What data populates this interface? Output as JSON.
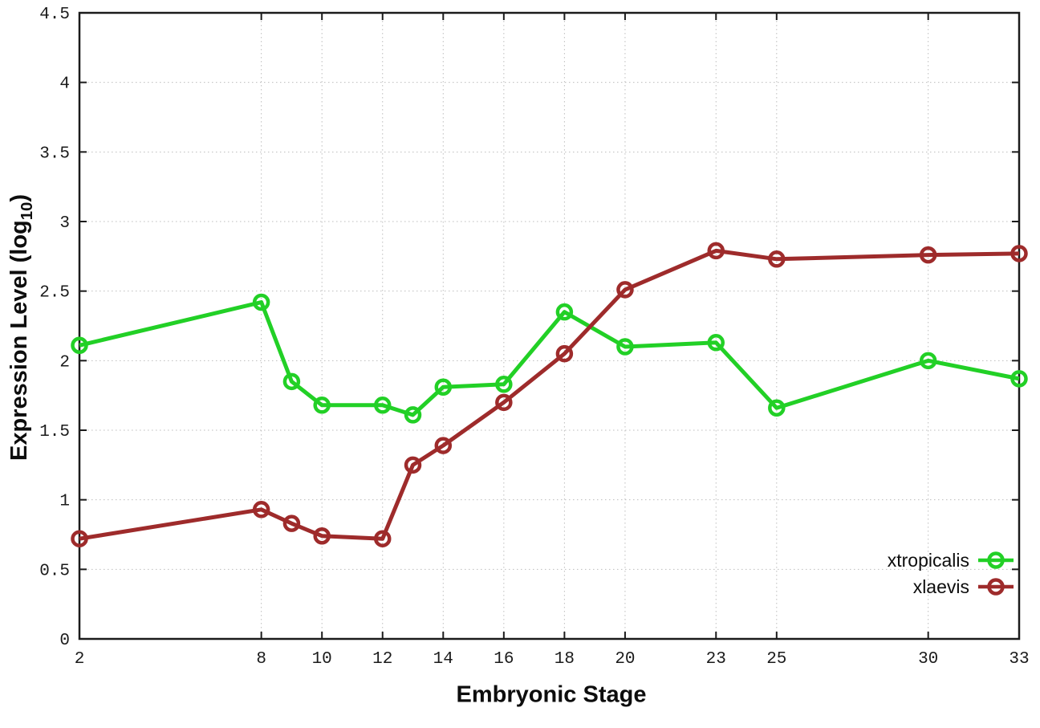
{
  "figure": {
    "background": "#ffffff",
    "axis_color": "#1b1b1b",
    "grid_color": "#bdbdbd",
    "tick_label_color": "#1b1b1b"
  },
  "chart_data": {
    "type": "line",
    "title": "",
    "xlabel": "Embryonic Stage",
    "ylabel": {
      "prefix": "Expression Level (log",
      "subscript": "10",
      "suffix": ")"
    },
    "xlim": [
      2,
      33
    ],
    "ylim": [
      0,
      4.5
    ],
    "grid": true,
    "legend_position": "bottom-right-inside",
    "xticks": [
      2,
      8,
      10,
      12,
      14,
      16,
      18,
      20,
      23,
      25,
      30,
      33
    ],
    "xtick_labels": [
      "2",
      "8",
      "10",
      "12",
      "14",
      "16",
      "18",
      "20",
      "23",
      "25",
      "30",
      "33"
    ],
    "yticks": [
      0,
      0.5,
      1,
      1.5,
      2,
      2.5,
      3,
      3.5,
      4,
      4.5
    ],
    "ytick_labels": [
      "0",
      "0.5",
      "1",
      "1.5",
      "2",
      "2.5",
      "3",
      "3.5",
      "4",
      "4.5"
    ],
    "x": [
      2,
      8,
      9,
      10,
      12,
      13,
      14,
      16,
      18,
      20,
      23,
      25,
      30,
      33
    ],
    "series": [
      {
        "name": "xtropicalis",
        "color": "#22d026",
        "values": [
          2.11,
          2.42,
          1.85,
          1.68,
          1.68,
          1.61,
          1.81,
          1.83,
          2.35,
          2.1,
          2.13,
          1.66,
          2.0,
          1.87
        ]
      },
      {
        "name": "xlaevis",
        "color": "#9e2b2b",
        "values": [
          0.72,
          0.93,
          0.83,
          0.74,
          0.72,
          1.25,
          1.39,
          1.7,
          2.05,
          2.51,
          2.79,
          2.73,
          2.76,
          2.77
        ]
      }
    ]
  }
}
